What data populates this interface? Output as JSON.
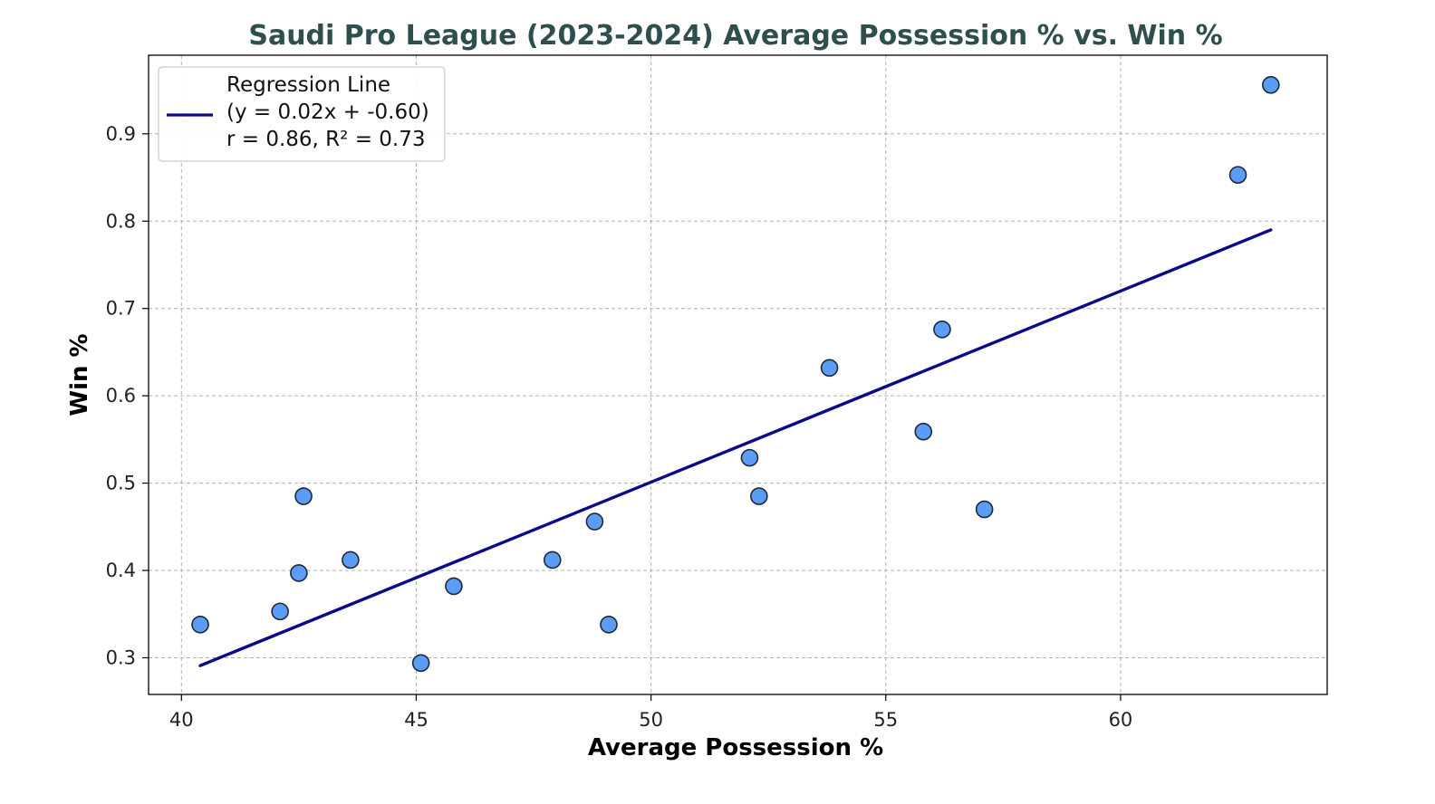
{
  "chart_data": {
    "type": "scatter",
    "title": "Saudi Pro League (2023-2024) Average Possession % vs. Win %",
    "xlabel": "Average Possession %",
    "ylabel": "Win %",
    "xlim": [
      39.3,
      64.4
    ],
    "ylim": [
      0.258,
      0.99
    ],
    "xticks": [
      40,
      45,
      50,
      55,
      60
    ],
    "xtick_labels": [
      "40",
      "45",
      "50",
      "55",
      "60"
    ],
    "yticks": [
      0.3,
      0.4,
      0.5,
      0.6,
      0.7,
      0.8,
      0.9
    ],
    "ytick_labels": [
      "0.3",
      "0.4",
      "0.5",
      "0.6",
      "0.7",
      "0.8",
      "0.9"
    ],
    "grid": true,
    "legend_position": "top-left",
    "colors": {
      "title": "#2f4f4f",
      "points": "#5b9cf6",
      "point_edge": "#1f2a36",
      "regression": "#0a0a8a",
      "grid": "#b0b0b0"
    },
    "series": [
      {
        "kind": "points",
        "x": [
          40.4,
          42.1,
          42.5,
          42.6,
          43.6,
          45.1,
          45.8,
          47.9,
          48.8,
          49.1,
          52.1,
          52.3,
          53.8,
          55.8,
          56.2,
          57.1,
          62.5,
          63.2
        ],
        "y": [
          0.338,
          0.353,
          0.397,
          0.485,
          0.412,
          0.294,
          0.382,
          0.412,
          0.456,
          0.338,
          0.529,
          0.485,
          0.632,
          0.559,
          0.676,
          0.47,
          0.853,
          0.956
        ]
      },
      {
        "kind": "line",
        "x": [
          40.4,
          63.2
        ],
        "y": [
          0.291,
          0.79
        ]
      }
    ],
    "legend": {
      "line1": "Regression Line",
      "line2": "(y = 0.02x + -0.60)",
      "line3": "r = 0.86, R² = 0.73"
    }
  }
}
